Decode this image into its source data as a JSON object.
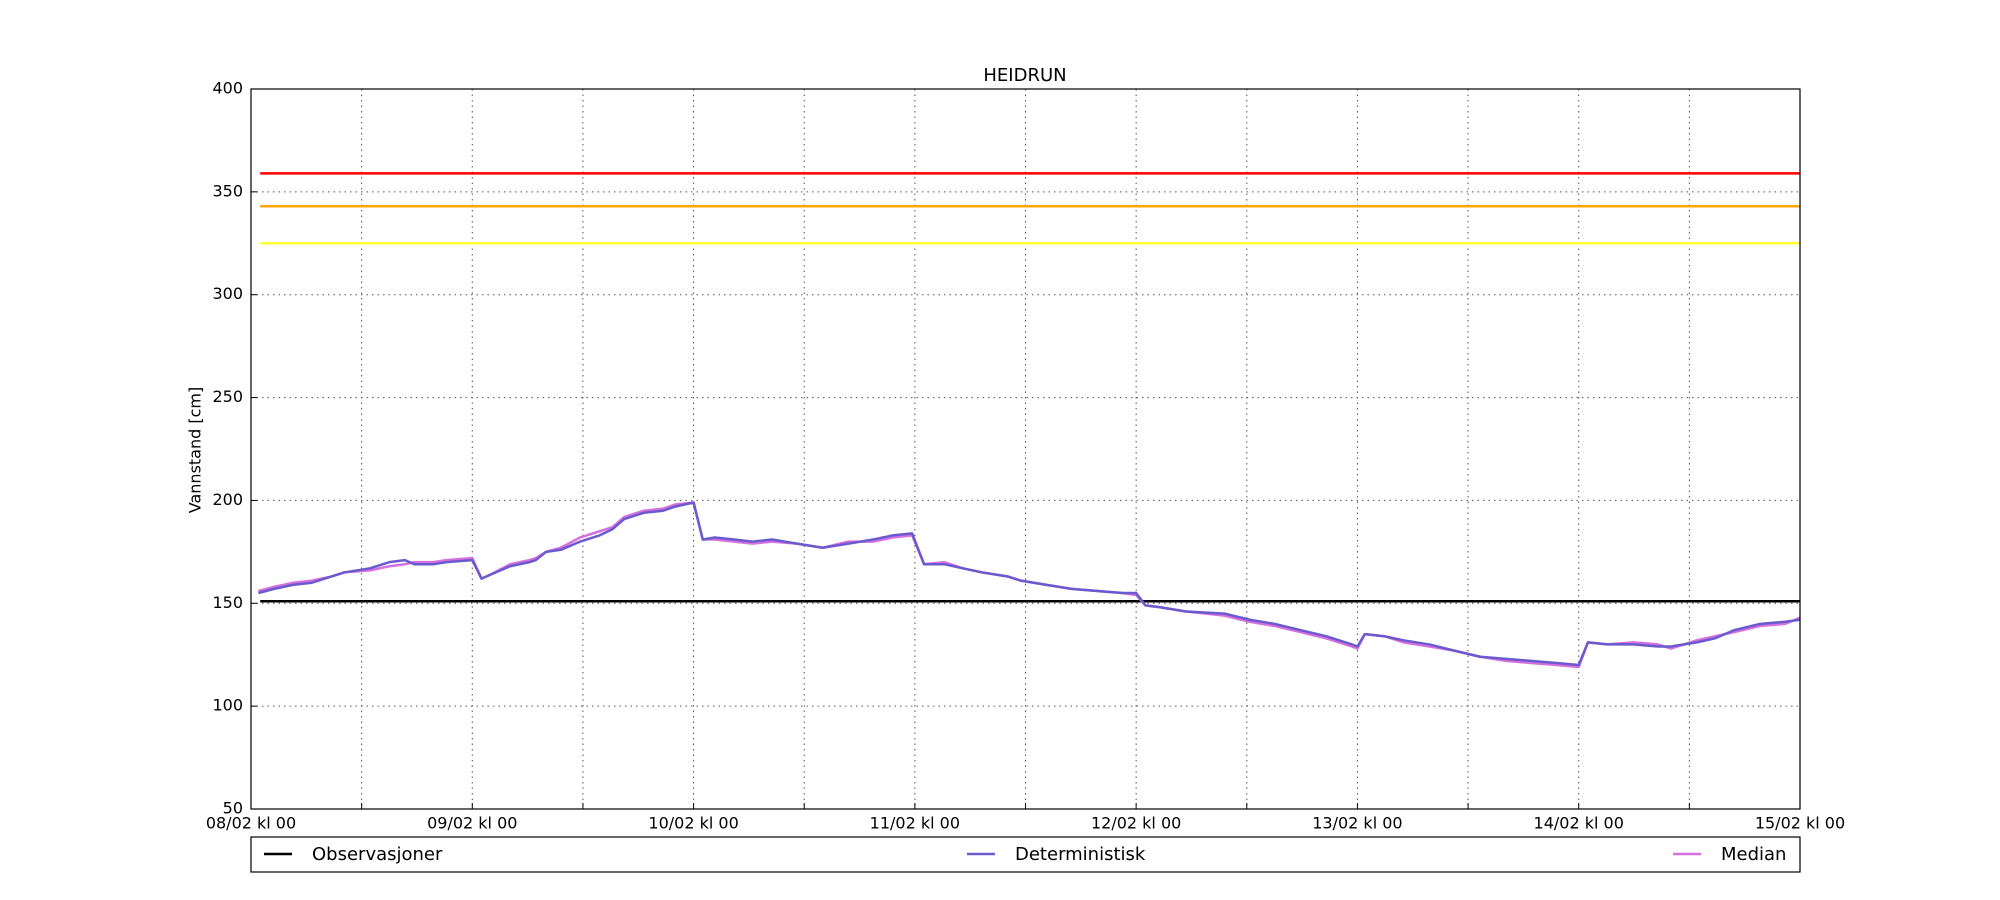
{
  "chart_data": {
    "type": "line",
    "title": "HEIDRUN",
    "y_label": "Vannstand [cm]",
    "ylim": [
      50,
      400
    ],
    "yticks": [
      50,
      100,
      150,
      200,
      250,
      300,
      350,
      400
    ],
    "xlim": [
      0,
      168
    ],
    "xticks": [
      {
        "value": 0,
        "label": "08/02 kl 00"
      },
      {
        "value": 24,
        "label": "09/02 kl 00"
      },
      {
        "value": 48,
        "label": "10/02 kl 00"
      },
      {
        "value": 72,
        "label": "11/02 kl 00"
      },
      {
        "value": 96,
        "label": "12/02 kl 00"
      },
      {
        "value": 120,
        "label": "13/02 kl 00"
      },
      {
        "value": 144,
        "label": "14/02 kl 00"
      },
      {
        "value": 168,
        "label": "15/02 kl 00"
      }
    ],
    "xminorticks": [
      12,
      36,
      60,
      84,
      108,
      132,
      156
    ],
    "grid": true,
    "thresholds": [
      {
        "color": "#ff0000",
        "x": [
          1,
          168
        ],
        "values": [
          359,
          359
        ]
      },
      {
        "color": "#ffa500",
        "x": [
          1,
          168
        ],
        "values": [
          343,
          343
        ]
      },
      {
        "color": "#ffff33",
        "x": [
          1,
          168
        ],
        "values": [
          325,
          325
        ]
      }
    ],
    "series": [
      {
        "name": "Observasjoner",
        "color": "#000000",
        "x": [
          1,
          168
        ],
        "values": [
          151,
          151
        ]
      },
      {
        "name": "Deterministisk",
        "color": "#6a5acd",
        "x": [
          0.8,
          2.5,
          4.6,
          6.6,
          8.7,
          10.1,
          12.9,
          15,
          16.7,
          17.7,
          19.8,
          21.2,
          24,
          25,
          26,
          28.1,
          30.2,
          30.9,
          32,
          33.6,
          35.7,
          37.8,
          39.2,
          40.5,
          42.6,
          44.7,
          46,
          48,
          49,
          50.3,
          52.4,
          54.4,
          56.5,
          59.2,
          62,
          64.8,
          67.5,
          69.6,
          71.7,
          73,
          75.2,
          77.2,
          79.3,
          82.1,
          83.5,
          86.2,
          89,
          91.8,
          94.5,
          96,
          97,
          98.7,
          101.4,
          105.6,
          108.3,
          111,
          113.8,
          116.6,
          119.4,
          120,
          120.8,
          122.9,
          125,
          127.8,
          130.5,
          133.3,
          136.1,
          138.8,
          141.6,
          144,
          145,
          147.1,
          149.9,
          152.6,
          154,
          156.8,
          158.8,
          160.9,
          163.7,
          166.4,
          168
        ],
        "values": [
          155,
          157,
          159,
          160,
          163,
          165,
          167,
          170,
          171,
          169,
          169,
          170,
          171,
          162,
          164,
          168,
          170,
          171,
          175,
          176,
          180,
          183,
          186,
          191,
          194,
          195,
          197,
          199,
          181,
          182,
          181,
          180,
          181,
          179,
          177,
          179,
          181,
          183,
          184,
          169,
          169,
          167,
          165,
          163,
          161,
          159,
          157,
          156,
          155,
          155,
          149,
          148,
          146,
          145,
          142,
          140,
          137,
          134,
          130,
          129,
          135,
          134,
          132,
          130,
          127,
          124,
          123,
          122,
          121,
          120,
          131,
          130,
          130,
          129,
          129,
          131,
          133,
          137,
          140,
          141,
          142
        ]
      },
      {
        "name": "Median",
        "color": "#d670e0",
        "x": [
          0.8,
          2.5,
          4.6,
          6.6,
          8.7,
          10.1,
          12.9,
          15,
          16.7,
          17.7,
          19.8,
          21.2,
          24,
          25,
          26,
          28.1,
          30.2,
          30.9,
          32,
          33.6,
          35.7,
          37.8,
          39.2,
          40.5,
          42.6,
          44.7,
          46,
          48,
          49,
          50.3,
          52.4,
          54.4,
          56.5,
          59.2,
          62,
          64.8,
          67.5,
          69.6,
          71.7,
          73,
          75.2,
          77.2,
          79.3,
          82.1,
          83.5,
          86.2,
          89,
          91.8,
          94.5,
          96,
          97,
          98.7,
          101.4,
          105.6,
          108.3,
          111,
          113.8,
          116.6,
          119.4,
          120,
          120.8,
          122.9,
          125,
          127.8,
          130.5,
          133.3,
          136.1,
          138.8,
          141.6,
          144,
          145,
          147.1,
          149.9,
          152.6,
          154,
          156.8,
          158.8,
          160.9,
          163.7,
          166.4,
          168
        ],
        "values": [
          156,
          158,
          160,
          161,
          163,
          165,
          166,
          168,
          169,
          170,
          170,
          171,
          172,
          162,
          164,
          169,
          171,
          172,
          175,
          177,
          182,
          185,
          187,
          192,
          195,
          196,
          198,
          199,
          181,
          181,
          180,
          179,
          180,
          179,
          177,
          180,
          180,
          182,
          183,
          169,
          170,
          167,
          165,
          163,
          161,
          159,
          157,
          156,
          155,
          154,
          149,
          148,
          146,
          144,
          141,
          139,
          136,
          133,
          129,
          128,
          135,
          134,
          131,
          129,
          127,
          124,
          122,
          121,
          120,
          119,
          131,
          130,
          131,
          130,
          128,
          132,
          134,
          136,
          139,
          140,
          143
        ]
      }
    ]
  }
}
